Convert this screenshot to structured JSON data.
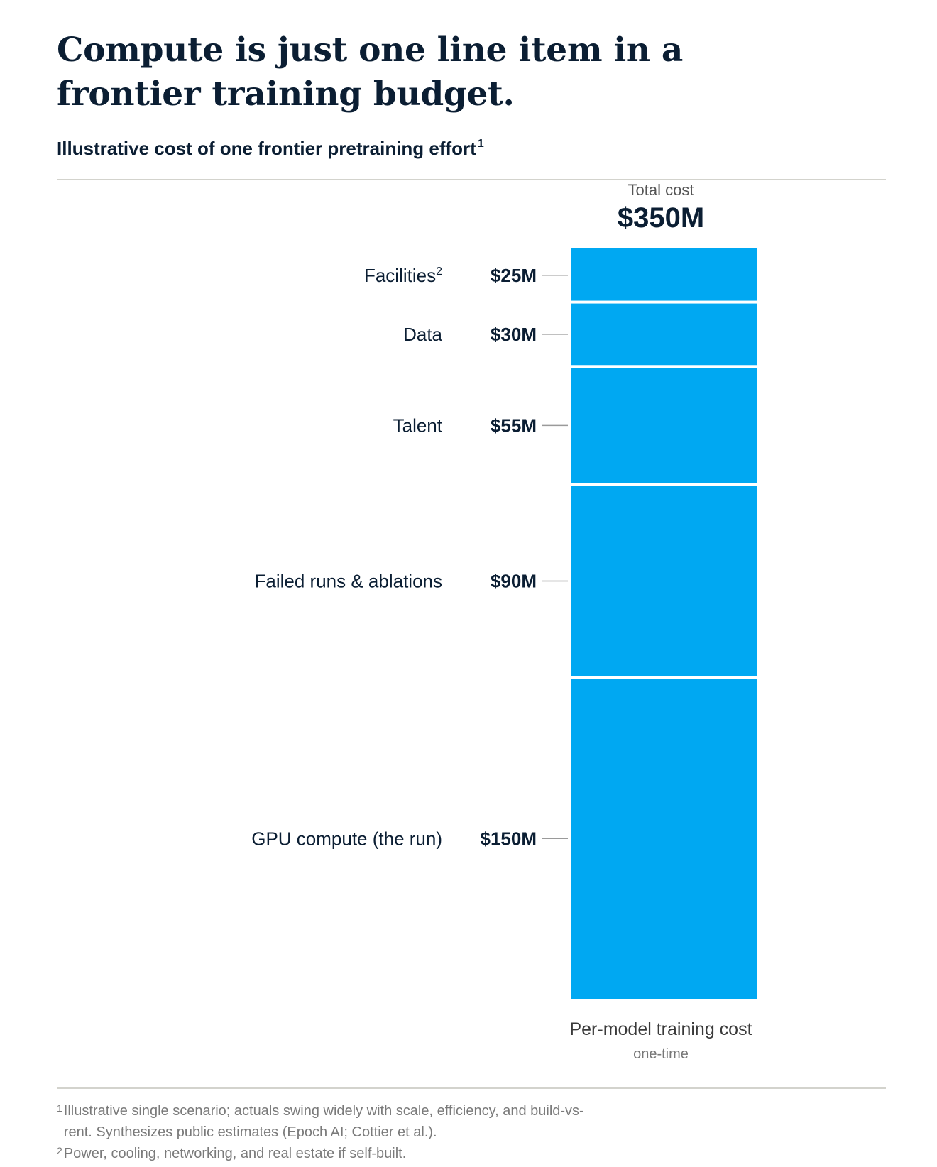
{
  "title": "Compute is just one line item in a frontier training budget.",
  "subtitle": "Illustrative cost of one frontier pretraining effort",
  "subtitle_footnote_mark": "1",
  "total": {
    "label": "Total cost",
    "value": "$350M"
  },
  "chart_data": {
    "type": "bar",
    "stacked": true,
    "categories": [
      "Per-model training cost"
    ],
    "series": [
      {
        "name": "Facilities",
        "footnote_mark": "2",
        "value": 25,
        "value_label": "$25M"
      },
      {
        "name": "Data",
        "value": 30,
        "value_label": "$30M"
      },
      {
        "name": "Talent",
        "value": 55,
        "value_label": "$55M"
      },
      {
        "name": "Failed runs & ablations",
        "value": 90,
        "value_label": "$90M"
      },
      {
        "name": "GPU compute (the run)",
        "value": 150,
        "value_label": "$150M"
      }
    ],
    "total": 350,
    "unit": "$M",
    "color": "#00a8f2",
    "xlabel": "Per-model training cost",
    "xsublabel": "one-time"
  },
  "footnotes": [
    {
      "mark": "1",
      "text": "Illustrative single scenario; actuals swing widely with scale, efficiency, and build-vs-rent. Synthesizes public estimates (Epoch AI; Cottier et al.)."
    },
    {
      "mark": "2",
      "text": "Power, cooling, networking, and real estate if self-built."
    }
  ]
}
